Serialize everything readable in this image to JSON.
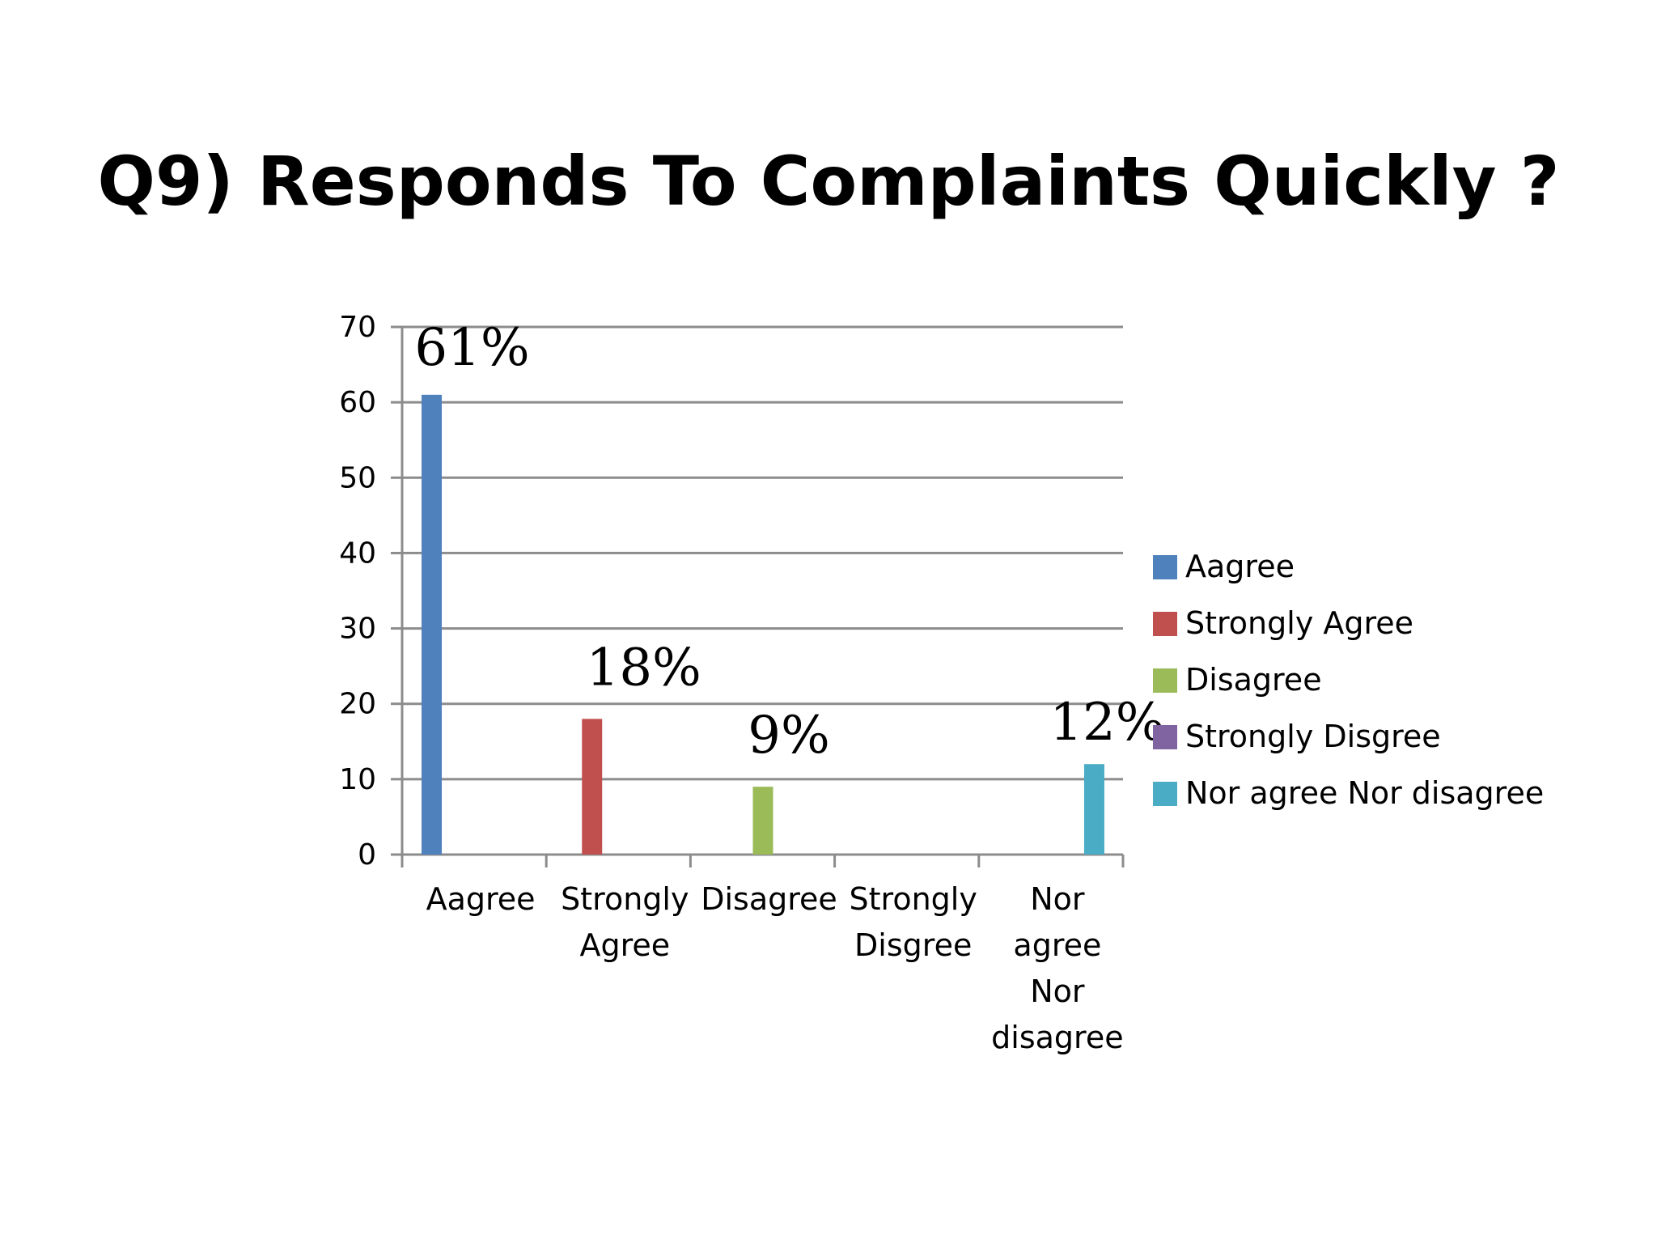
{
  "title": "Q9) Responds To Complaints Quickly ?",
  "chart_data": {
    "type": "bar",
    "title": "Q9) Responds To Complaints Quickly ?",
    "categories": [
      [
        "Aagree"
      ],
      [
        "Strongly",
        "Agree"
      ],
      [
        "Disagree"
      ],
      [
        "Strongly",
        "Disgree"
      ],
      [
        "Nor",
        "agree",
        "Nor",
        "disagree"
      ]
    ],
    "values": [
      61,
      18,
      9,
      0,
      12
    ],
    "data_labels": [
      "61%",
      "18%",
      "9%",
      "",
      "12%"
    ],
    "colors": [
      "#4f81bd",
      "#c0504d",
      "#9bbb59",
      "#8064a2",
      "#4bacc6"
    ],
    "legend": {
      "position": "right",
      "entries": [
        "Aagree",
        "Strongly Agree",
        "Disagree",
        "Strongly Disgree",
        "Nor agree Nor disagree"
      ]
    },
    "ylim": [
      0,
      70
    ],
    "yticks": [
      0,
      10,
      20,
      30,
      40,
      50,
      60,
      70
    ],
    "grid": true,
    "xlabel": "",
    "ylabel": ""
  }
}
